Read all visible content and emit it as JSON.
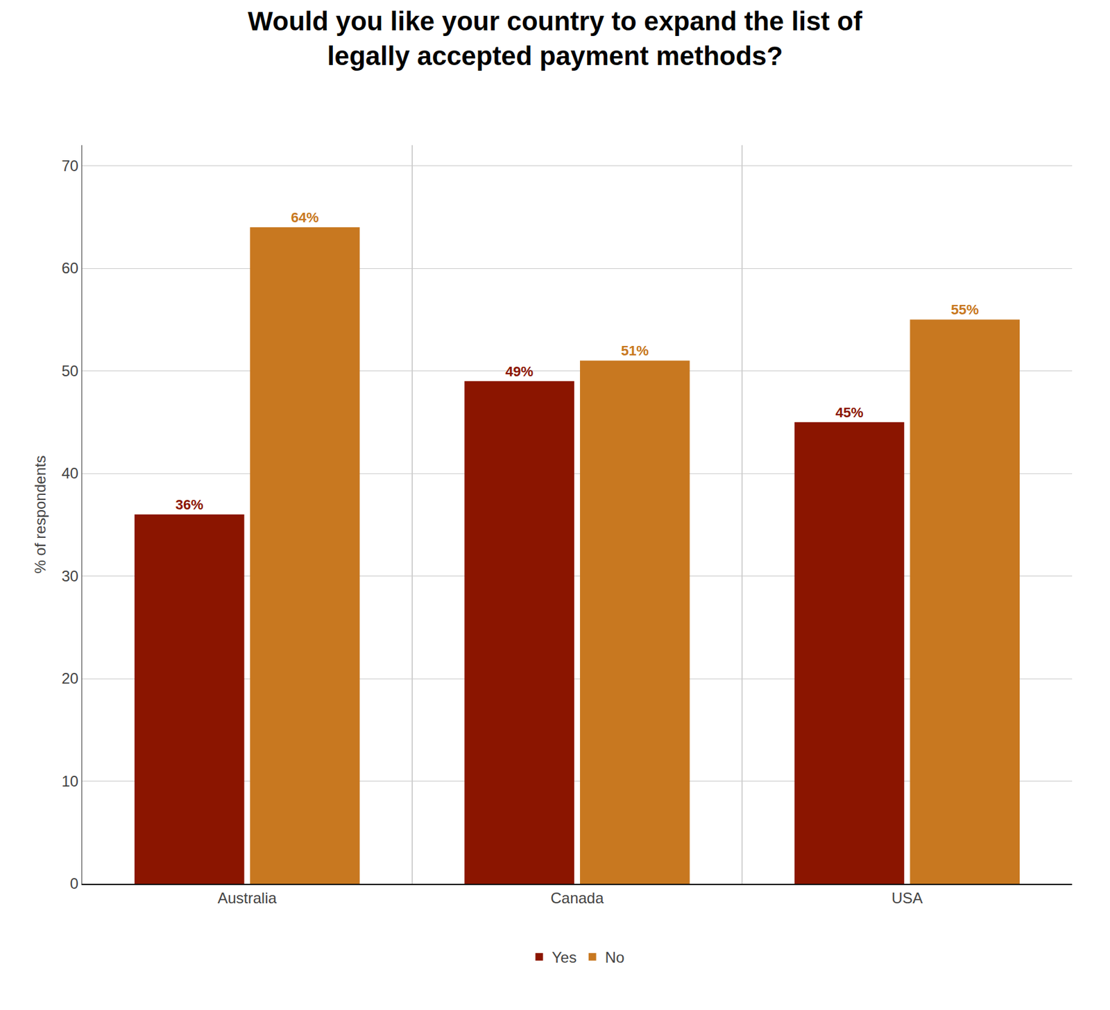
{
  "chart_data": {
    "type": "bar",
    "title": "Would you like your country to expand the list of\nlegally accepted payment methods?",
    "categories": [
      "Australia",
      "Canada",
      "USA"
    ],
    "series": [
      {
        "name": "Yes",
        "color": "#8B1500",
        "values": [
          36,
          49,
          45
        ],
        "value_labels": [
          "36%",
          "49%",
          "45%"
        ]
      },
      {
        "name": "No",
        "color": "#C87820",
        "values": [
          64,
          51,
          55
        ],
        "value_labels": [
          "64%",
          "51%",
          "55%"
        ]
      }
    ],
    "ylabel": "% of respondents",
    "ylim": [
      0,
      72
    ],
    "yticks": [
      0,
      10,
      20,
      30,
      40,
      50,
      60,
      70
    ],
    "grid": true,
    "legend": "bottom",
    "data_labels": true
  }
}
